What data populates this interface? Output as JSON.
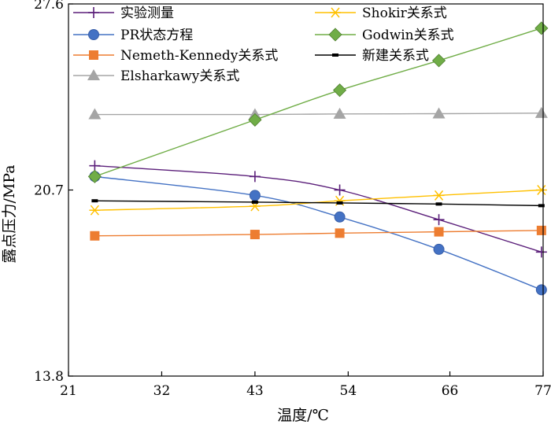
{
  "chart_data": {
    "type": "line",
    "xlabel": "温度/℃",
    "ylabel": "露点压力/MPa",
    "xlim": [
      21,
      77
    ],
    "ylim": [
      13.8,
      27.6
    ],
    "x_ticks": [
      "21",
      "32",
      "43",
      "54",
      "66",
      "77"
    ],
    "y_ticks": [
      "13.8",
      "20.7",
      "27.6"
    ],
    "legend_position": "top, inside plot (3 columns)",
    "series": [
      {
        "name": "实验测量",
        "color": "#5b1f7a",
        "marker": "plus",
        "points": [
          [
            24.1,
            21.6
          ],
          [
            43,
            21.2
          ],
          [
            53,
            20.7
          ],
          [
            64.7,
            19.6
          ],
          [
            76.8,
            18.4
          ]
        ]
      },
      {
        "name": "PR状态方程",
        "color": "#4472c4",
        "marker": "circle",
        "points": [
          [
            24.1,
            21.2
          ],
          [
            43,
            20.5
          ],
          [
            53,
            19.7
          ],
          [
            64.7,
            18.5
          ],
          [
            76.8,
            17.0
          ]
        ]
      },
      {
        "name": "Nemeth-Kennedy关系式",
        "color": "#ed7d31",
        "marker": "square",
        "points": [
          [
            24.1,
            19.0
          ],
          [
            43,
            19.05
          ],
          [
            53,
            19.1
          ],
          [
            64.7,
            19.15
          ],
          [
            76.8,
            19.2
          ]
        ]
      },
      {
        "name": "Elsharkawy关系式",
        "color": "#a5a5a5",
        "marker": "triangle",
        "points": [
          [
            24.1,
            23.5
          ],
          [
            43,
            23.5
          ],
          [
            53,
            23.52
          ],
          [
            64.7,
            23.53
          ],
          [
            76.8,
            23.55
          ]
        ]
      },
      {
        "name": "Shokir关系式",
        "color": "#ffc000",
        "marker": "asterisk",
        "points": [
          [
            24.1,
            19.95
          ],
          [
            43,
            20.1
          ],
          [
            53,
            20.3
          ],
          [
            64.7,
            20.5
          ],
          [
            76.8,
            20.7
          ]
        ]
      },
      {
        "name": "Godwin关系式",
        "color": "#70ad47",
        "marker": "diamond",
        "points": [
          [
            24.1,
            21.2
          ],
          [
            43,
            23.3
          ],
          [
            53,
            24.4
          ],
          [
            64.7,
            25.5
          ],
          [
            76.8,
            26.7
          ]
        ]
      },
      {
        "name": "新建关系式",
        "color": "#000000",
        "marker": "dash",
        "points": [
          [
            24.1,
            20.3
          ],
          [
            43,
            20.25
          ],
          [
            53,
            20.22
          ],
          [
            64.7,
            20.18
          ],
          [
            76.8,
            20.12
          ]
        ]
      }
    ]
  }
}
